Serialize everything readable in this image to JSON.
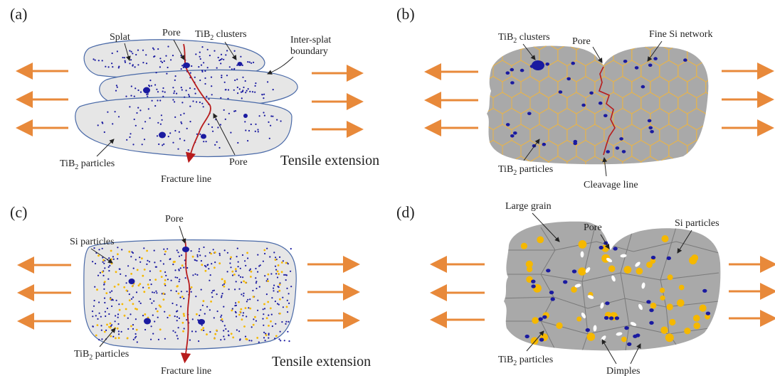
{
  "panels": {
    "a": {
      "label": "(a)",
      "splat": "Splat",
      "pore_top": "Pore",
      "tib2_clusters": {
        "main": "TiB",
        "sub": "2",
        "rest": " clusters"
      },
      "inter_splat_1": "Inter-splat",
      "inter_splat_2": "boundary",
      "tib2_particles": {
        "main": "TiB",
        "sub": "2",
        "rest": " particles"
      },
      "pore_bottom": "Pore",
      "fracture_line": "Fracture line",
      "tensile": "Tensile extension"
    },
    "b": {
      "label": "(b)",
      "tib2_clusters": {
        "main": "TiB",
        "sub": "2",
        "rest": " clusters"
      },
      "pore": "Pore",
      "fine_si": "Fine Si network",
      "tib2_particles": {
        "main": "TiB",
        "sub": "2",
        "rest": " particles"
      },
      "cleavage_line": "Cleavage line"
    },
    "c": {
      "label": "(c)",
      "pore": "Pore",
      "si_particles": "Si particles",
      "tib2_particles": {
        "main": "TiB",
        "sub": "2",
        "rest": " particles"
      },
      "fracture_line": "Fracture line",
      "tensile": "Tensile extension"
    },
    "d": {
      "label": "(d)",
      "large_grain": "Large grain",
      "pore": "Pore",
      "si_particles": "Si particles",
      "tib2_particles": {
        "main": "TiB",
        "sub": "2",
        "rest": " particles"
      },
      "dimples": "Dimples"
    }
  },
  "colors": {
    "arrow": "#e8893a",
    "splat_fill": "#e6e6e6",
    "splat_stroke": "#4a6aa8",
    "particle_blue": "#1a1aa0",
    "fracture_red": "#b81c1c",
    "grain_fill": "#a9a9a9",
    "si_network": "#e8b44a",
    "si_yellow": "#f5b800"
  }
}
